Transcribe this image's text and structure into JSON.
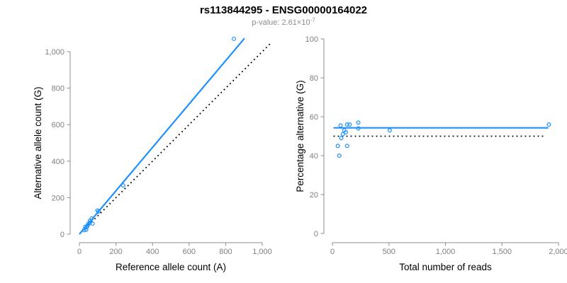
{
  "header": {
    "title": "rs113844295 - ENSG00000164022",
    "pvalue_text": "p-value: 2.61×10",
    "pvalue_exponent": "-7"
  },
  "colors": {
    "accent": "#1E90FF",
    "dotted_line": "#000000",
    "axis": "#8c8c8c",
    "tick_label": "#808080",
    "axis_title": "#000000",
    "title": "#000000",
    "subtitle": "#8c8c8c"
  },
  "chart_data": [
    {
      "type": "scatter",
      "title": "",
      "xlabel": "Reference allele count (A)",
      "ylabel": "Alternative allele count (G)",
      "xlim": [
        0,
        1000
      ],
      "ylim": [
        0,
        1000
      ],
      "xticks": [
        0,
        200,
        400,
        600,
        800,
        1000
      ],
      "yticks": [
        0,
        200,
        400,
        600,
        800,
        1000
      ],
      "grid": false,
      "legend": false,
      "points": [
        [
          26,
          22
        ],
        [
          37,
          24
        ],
        [
          32,
          40
        ],
        [
          40,
          38
        ],
        [
          45,
          47
        ],
        [
          49,
          56
        ],
        [
          57,
          62
        ],
        [
          72,
          58
        ],
        [
          57,
          73
        ],
        [
          67,
          86
        ],
        [
          99,
          130
        ],
        [
          105,
          124
        ],
        [
          240,
          267
        ],
        [
          845,
          1070
        ]
      ],
      "lines": [
        {
          "name": "fit-line",
          "x1": 0,
          "y1": 0,
          "x2": 903,
          "y2": 1073,
          "color": "#1E90FF",
          "dash": false
        },
        {
          "name": "identity-line",
          "x1": 50,
          "y1": 50,
          "x2": 1050,
          "y2": 1050,
          "color": "#000000",
          "dash": true
        }
      ]
    },
    {
      "type": "scatter",
      "title": "",
      "xlabel": "Total number of reads",
      "ylabel": "Percentage alternative (G)",
      "xlim": [
        0,
        2000
      ],
      "ylim": [
        0,
        100
      ],
      "xticks": [
        0,
        500,
        1000,
        1500,
        2000
      ],
      "yticks": [
        0,
        20,
        40,
        60,
        80,
        100
      ],
      "grid": false,
      "legend": false,
      "points": [
        [
          48,
          45
        ],
        [
          61,
          40
        ],
        [
          72,
          55.5
        ],
        [
          78,
          49
        ],
        [
          92,
          51
        ],
        [
          105,
          53
        ],
        [
          119,
          52
        ],
        [
          130,
          45
        ],
        [
          130,
          56
        ],
        [
          153,
          56
        ],
        [
          229,
          57
        ],
        [
          229,
          54
        ],
        [
          507,
          53
        ],
        [
          1915,
          56
        ]
      ],
      "lines": [
        {
          "name": "fit-line",
          "x1": 10,
          "y1": 54.3,
          "x2": 1910,
          "y2": 54.3,
          "color": "#1E90FF",
          "dash": false
        },
        {
          "name": "reference-line",
          "x1": 10,
          "y1": 50,
          "x2": 1870,
          "y2": 50,
          "color": "#000000",
          "dash": true
        }
      ]
    }
  ]
}
